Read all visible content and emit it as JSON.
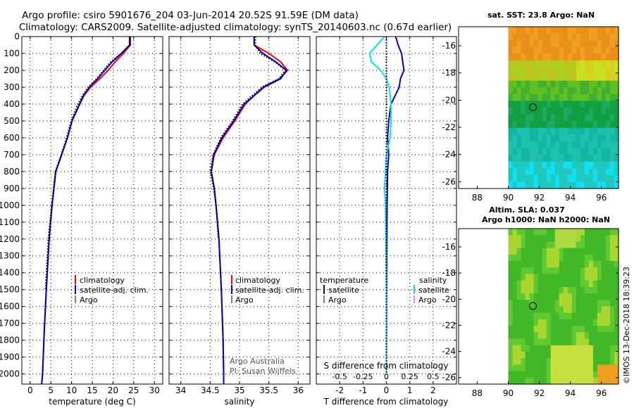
{
  "header": {
    "line1": "Argo profile: csiro 5901676_204 03-Jun-2014 20.52S 91.59E (DM data)",
    "line2": "Climatology: CARS2009. Satellite-adjusted climatology: synTS_20140603.nc (0.67d earlier)"
  },
  "colors": {
    "climatology": "#ff0000",
    "satellite_adj": "#0000cc",
    "argo": "#000000",
    "salinity_satellite": "#00e6e6",
    "salinity_argo": "#ff00ff"
  },
  "credits": {
    "line1": "Argo Australia",
    "line2": "PI: Susan Wijffels"
  },
  "imos_stamp": "©IMOS 13-Dec-2018 18:39:23",
  "legend1": {
    "clim": "climatology",
    "sat": "satellite-adj. clim.",
    "argo": "Argo"
  },
  "legend2": {
    "clim": "climatology",
    "sat": "satellite-adj. clim.",
    "argo": "Argo"
  },
  "legend3": {
    "temp_title": "temperature",
    "temp_sat": "satellite",
    "temp_argo": "Argo",
    "sal_title": "salinity",
    "sal_sat": "satellite",
    "sal_argo": "Argo"
  },
  "maps": {
    "sst_title": "sat. SST: 23.8 Argo: NaN",
    "sla_title1": "Altim. SLA: 0.037",
    "sla_title2": "Argo h1000: NaN h2000: NaN",
    "lon_ticks": [
      "88",
      "90",
      "92",
      "94",
      "96"
    ],
    "lat_ticks": [
      "-16",
      "-18",
      "-20",
      "-22",
      "-24",
      "-26"
    ],
    "profile_lon": 91.59,
    "profile_lat": -20.52
  },
  "chart_data": [
    {
      "type": "line",
      "title": "",
      "xlabel": "temperature (deg C)",
      "ylabel": "",
      "xlim": [
        -2,
        32
      ],
      "ylim": [
        2060,
        0
      ],
      "xticks": [
        "0",
        "5",
        "10",
        "15",
        "20",
        "25",
        "30"
      ],
      "yticks": [
        "0",
        "100",
        "200",
        "300",
        "400",
        "500",
        "600",
        "700",
        "800",
        "900",
        "1000",
        "1100",
        "1200",
        "1300",
        "1400",
        "1500",
        "1600",
        "1700",
        "1800",
        "1900",
        "2000"
      ],
      "series": [
        {
          "name": "climatology",
          "color": "#ff0000",
          "depth": [
            0,
            50,
            100,
            150,
            200,
            250,
            300,
            350,
            400,
            500,
            600,
            700,
            800,
            1000,
            1200,
            1500,
            1750,
            2000,
            2060
          ],
          "values": [
            24.2,
            24.2,
            22.5,
            20.5,
            18.8,
            16.8,
            14.6,
            13.0,
            12.0,
            10.1,
            9.0,
            7.6,
            6.2,
            5.3,
            4.6,
            3.9,
            3.4,
            3.0,
            2.8
          ]
        },
        {
          "name": "satellite-adj. clim.",
          "color": "#0000cc",
          "depth": [
            0,
            50,
            100,
            150,
            200,
            250,
            300,
            350,
            400,
            500,
            600,
            700,
            800,
            1000,
            1200,
            1500,
            1750,
            2000,
            2060
          ],
          "values": [
            24.0,
            24.0,
            22.0,
            19.8,
            18.0,
            16.3,
            14.3,
            12.9,
            11.9,
            10.1,
            9.0,
            7.6,
            6.2,
            5.3,
            4.6,
            3.9,
            3.4,
            3.0,
            2.8
          ]
        },
        {
          "name": "Argo",
          "color": "#000000",
          "depth": [
            0,
            50,
            100,
            150,
            200,
            250,
            300,
            350,
            400,
            500,
            600,
            700,
            800,
            1000,
            1200,
            1500
          ],
          "values": [
            24.1,
            24.1,
            22.0,
            19.4,
            17.7,
            16.0,
            14.0,
            12.6,
            11.5,
            9.9,
            8.8,
            7.5,
            6.1,
            5.2,
            4.4,
            3.7
          ]
        }
      ]
    },
    {
      "type": "line",
      "xlabel": "salinity",
      "xlim": [
        33.8,
        36.2
      ],
      "ylim": [
        2060,
        0
      ],
      "xticks": [
        "34",
        "34.5",
        "35",
        "35.5",
        "36"
      ],
      "series": [
        {
          "name": "climatology",
          "color": "#ff0000",
          "depth": [
            0,
            50,
            100,
            150,
            200,
            250,
            300,
            400,
            500,
            600,
            700,
            800,
            900,
            1000,
            1200,
            1500,
            1800,
            2000,
            2060
          ],
          "values": [
            35.25,
            35.25,
            35.5,
            35.7,
            35.82,
            35.68,
            35.4,
            35.1,
            34.92,
            34.72,
            34.57,
            34.52,
            34.57,
            34.6,
            34.65,
            34.69,
            34.72,
            34.73,
            34.73
          ]
        },
        {
          "name": "satellite-adj. clim.",
          "color": "#0000cc",
          "depth": [
            0,
            50,
            100,
            150,
            200,
            250,
            300,
            400,
            500,
            600,
            700,
            800,
            900,
            1000,
            1200,
            1500,
            1800,
            2000,
            2060
          ],
          "values": [
            35.25,
            35.25,
            35.4,
            35.62,
            35.8,
            35.7,
            35.42,
            35.08,
            34.9,
            34.7,
            34.56,
            34.52,
            34.57,
            34.6,
            34.65,
            34.69,
            34.72,
            34.73,
            34.73
          ]
        },
        {
          "name": "Argo",
          "color": "#000000",
          "depth": [
            0,
            50,
            100,
            150,
            200,
            250,
            300,
            400,
            500,
            600,
            700,
            800,
            900,
            1000,
            1200
          ],
          "values": [
            35.27,
            35.27,
            35.35,
            35.6,
            35.78,
            35.67,
            35.38,
            35.05,
            34.88,
            34.68,
            34.55,
            34.5,
            34.56,
            34.6,
            34.64
          ]
        }
      ]
    },
    {
      "type": "line",
      "xlabel": "T difference from climatology",
      "top_xlabel": "S difference from climatology",
      "xlim": [
        -3,
        3
      ],
      "ylim": [
        2060,
        0
      ],
      "xticks": [
        "-2",
        "-1",
        "0",
        "1",
        "2"
      ],
      "top_xticks": [
        "-0.5",
        "-0.25",
        "0",
        "0.25",
        "0.5"
      ],
      "series": [
        {
          "name": "temperature satellite",
          "color": "#0000cc",
          "depth": [
            0,
            50,
            100,
            150,
            200,
            250,
            300,
            400,
            500,
            600,
            700,
            800,
            1000,
            1500,
            2000
          ],
          "values": [
            0.4,
            0.5,
            0.65,
            0.7,
            0.75,
            0.6,
            0.55,
            0.2,
            0.1,
            0.05,
            0.1,
            0.05,
            0.03,
            0.01,
            0.0
          ]
        },
        {
          "name": "salinity satellite",
          "color": "#00e6e6",
          "depth": [
            0,
            50,
            100,
            150,
            200,
            250,
            300,
            400,
            500,
            600,
            700,
            800,
            900,
            1000,
            1500,
            2000
          ],
          "values": [
            -0.02,
            -0.1,
            -0.18,
            -0.16,
            -0.06,
            0.0,
            0.03,
            0.05,
            0.05,
            0.04,
            0.0,
            -0.01,
            -0.02,
            -0.01,
            0.0,
            0.0
          ]
        },
        {
          "name": "Argo",
          "color": "#000000",
          "depth": [
            0,
            2000
          ],
          "values": [
            0.0,
            0.0
          ]
        }
      ]
    }
  ]
}
